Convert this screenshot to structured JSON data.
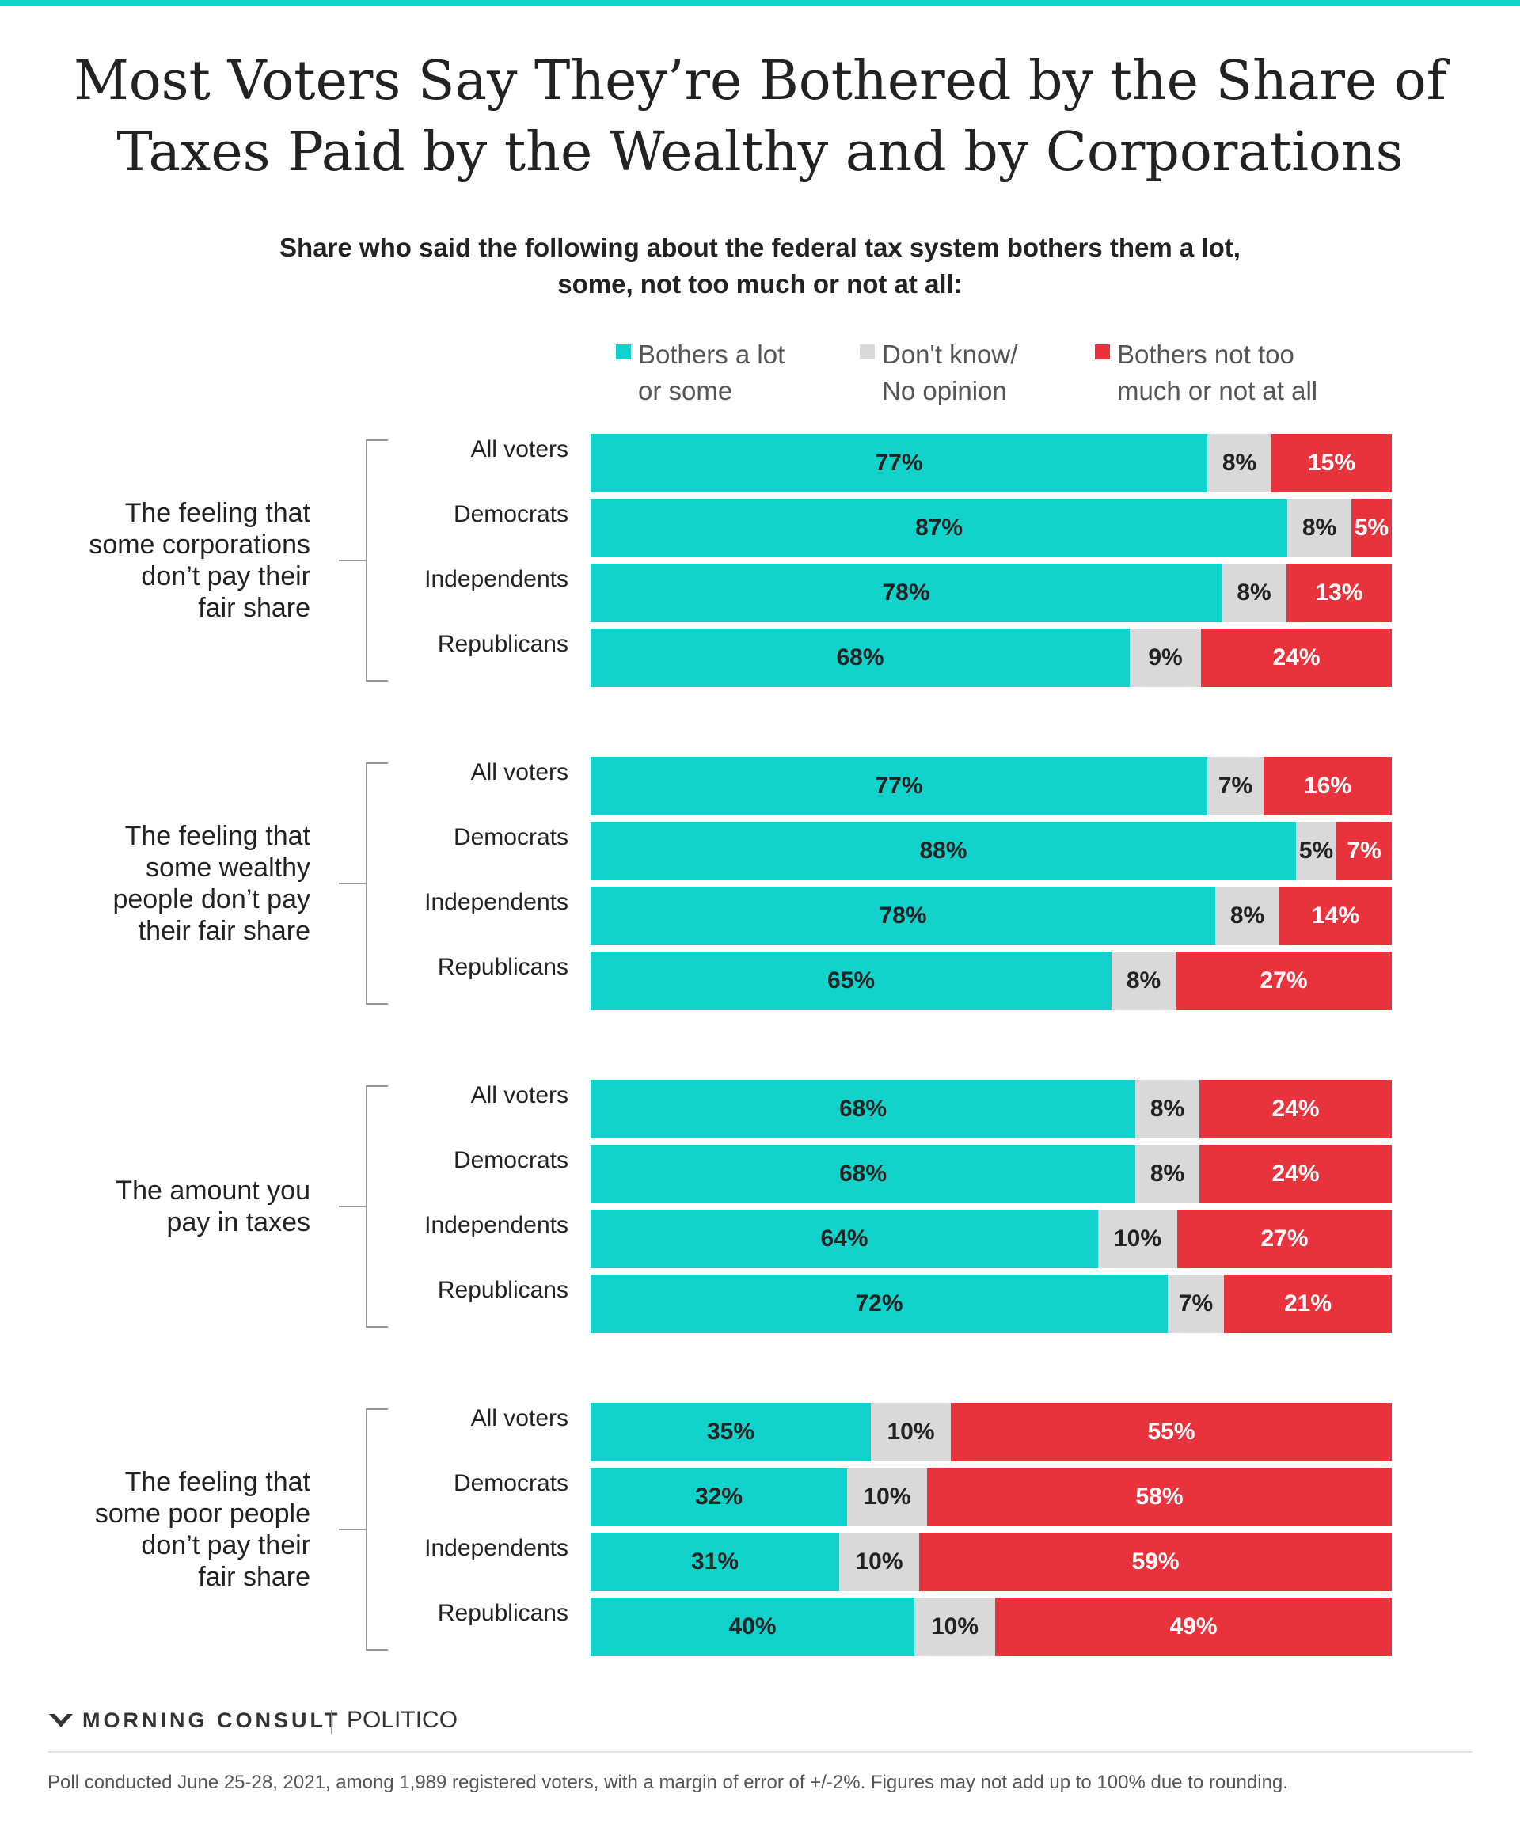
{
  "title": [
    "Most Voters Say They’re Bothered by the Share of",
    "Taxes Paid by the Wealthy and by Corporations"
  ],
  "subtitle": [
    "Share who said the following about the federal tax system bothers them a lot,",
    "some, not too much or not at all:"
  ],
  "colors": {
    "bothers": "#12d3cb",
    "dont_know": "#d9d9d9",
    "not_bothered": "#e8323c",
    "accent_bar": "#12d3cb"
  },
  "chart_data": {
    "type": "bar",
    "orientation": "horizontal",
    "stacked": true,
    "legend_placement": "top",
    "legend": [
      {
        "key": "lot",
        "lines": [
          "Bothers a lot",
          "or some"
        ],
        "color": "#12d3cb"
      },
      {
        "key": "dk",
        "lines": [
          "Don't know/",
          "No opinion"
        ],
        "color": "#d9d9d9"
      },
      {
        "key": "not",
        "lines": [
          "Bothers not too",
          "much or not at all"
        ],
        "color": "#e8323c"
      }
    ],
    "groups": [
      {
        "label": [
          "The feeling that",
          "some corporations",
          "don’t pay their",
          "fair share"
        ],
        "rows": [
          {
            "label": "All voters",
            "values": [
              77,
              8,
              15
            ]
          },
          {
            "label": "Democrats",
            "values": [
              87,
              8,
              5
            ]
          },
          {
            "label": "Independents",
            "values": [
              78,
              8,
              13
            ]
          },
          {
            "label": "Republicans",
            "values": [
              68,
              9,
              24
            ]
          }
        ]
      },
      {
        "label": [
          "The feeling that",
          "some wealthy",
          "people  don’t pay",
          "their fair share"
        ],
        "rows": [
          {
            "label": "All voters",
            "values": [
              77,
              7,
              16
            ]
          },
          {
            "label": "Democrats",
            "values": [
              88,
              5,
              7
            ]
          },
          {
            "label": "Independents",
            "values": [
              78,
              8,
              14
            ]
          },
          {
            "label": "Republicans",
            "values": [
              65,
              8,
              27
            ]
          }
        ]
      },
      {
        "label": [
          "The amount you",
          "pay in taxes"
        ],
        "rows": [
          {
            "label": "All voters",
            "values": [
              68,
              8,
              24
            ]
          },
          {
            "label": "Democrats",
            "values": [
              68,
              8,
              24
            ]
          },
          {
            "label": "Independents",
            "values": [
              64,
              10,
              27
            ]
          },
          {
            "label": "Republicans",
            "values": [
              72,
              7,
              21
            ]
          }
        ]
      },
      {
        "label": [
          "The feeling that",
          "some poor people",
          "don’t pay their",
          "fair share"
        ],
        "rows": [
          {
            "label": "All voters",
            "values": [
              35,
              10,
              55
            ]
          },
          {
            "label": "Democrats",
            "values": [
              32,
              10,
              58
            ]
          },
          {
            "label": "Independents",
            "values": [
              31,
              10,
              59
            ]
          },
          {
            "label": "Republicans",
            "values": [
              40,
              10,
              49
            ]
          }
        ]
      }
    ]
  },
  "footer": {
    "logo": "MORNING CONSULT",
    "logo_icon": "morning-consult-logo-icon",
    "publisher": "POLITICO",
    "note": "Poll conducted June 25-28, 2021, among 1,989 registered voters, with a margin of error of +/-2%. Figures may not add up to 100% due to rounding."
  }
}
